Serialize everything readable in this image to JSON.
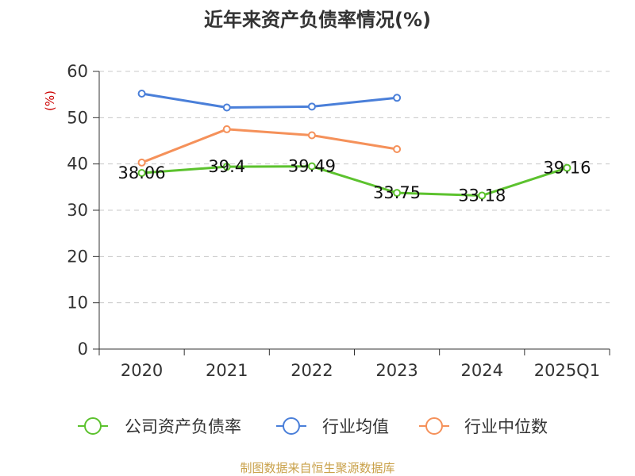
{
  "chart_data": {
    "type": "line",
    "title": "近年来资产负债率情况(%)",
    "unit_label": "(%)",
    "categories": [
      "2020",
      "2021",
      "2022",
      "2023",
      "2024",
      "2025Q1"
    ],
    "ylim": [
      0,
      60
    ],
    "yticks": [
      "0",
      "10",
      "20",
      "30",
      "40",
      "50",
      "60"
    ],
    "grid": true,
    "legend_position": "bottom",
    "series": [
      {
        "name": "公司资产负债率",
        "color": "#5cc22e",
        "values": [
          38.06,
          39.4,
          39.49,
          33.75,
          33.18,
          39.16
        ],
        "labels": [
          "38.06",
          "39.4",
          "39.49",
          "33.75",
          "33.18",
          "39.16"
        ]
      },
      {
        "name": "行业均值",
        "color": "#4a7fd9",
        "values": [
          55.2,
          52.2,
          52.4,
          54.3,
          null,
          null
        ]
      },
      {
        "name": "行业中位数",
        "color": "#f5915a",
        "values": [
          40.3,
          47.5,
          46.2,
          43.2,
          null,
          null
        ]
      }
    ],
    "source": "制图数据来自恒生聚源数据库"
  }
}
